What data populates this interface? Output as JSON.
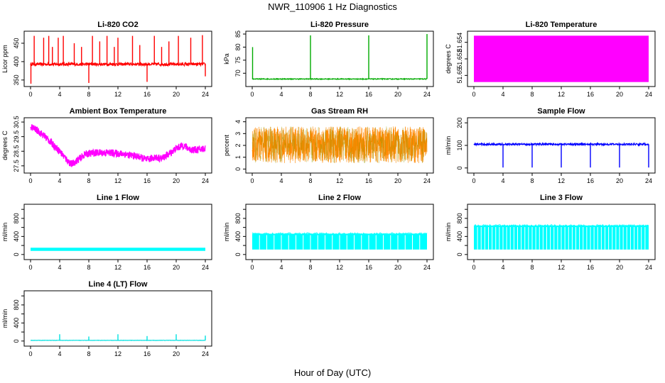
{
  "figure": {
    "title": "NWR_110906  1 Hz Diagnostics",
    "xlabel": "Hour of Day (UTC)"
  },
  "chart_data": [
    {
      "id": "co2",
      "type": "line",
      "title": "Li-820 CO2",
      "ylabel": "Licor ppm",
      "color": "#ff0000",
      "xlim": [
        0,
        24
      ],
      "ylim": [
        340,
        475
      ],
      "xticks": [
        0,
        4,
        8,
        12,
        16,
        20,
        24
      ],
      "yticks": [
        350,
        400,
        450
      ],
      "ytick_labels": [
        "350",
        "400",
        "450"
      ],
      "baseline": 393,
      "noise": 4,
      "spikes": [
        {
          "x": 0.05,
          "y": 340
        },
        {
          "x": 0.5,
          "y": 470
        },
        {
          "x": 1.8,
          "y": 465
        },
        {
          "x": 2.5,
          "y": 470
        },
        {
          "x": 3.0,
          "y": 440
        },
        {
          "x": 3.8,
          "y": 465
        },
        {
          "x": 4.5,
          "y": 470
        },
        {
          "x": 6.0,
          "y": 450
        },
        {
          "x": 7.0,
          "y": 440
        },
        {
          "x": 8.0,
          "y": 342
        },
        {
          "x": 8.5,
          "y": 470
        },
        {
          "x": 9.5,
          "y": 455
        },
        {
          "x": 10.5,
          "y": 470
        },
        {
          "x": 11.5,
          "y": 440
        },
        {
          "x": 12.0,
          "y": 465
        },
        {
          "x": 14.0,
          "y": 470
        },
        {
          "x": 15.0,
          "y": 445
        },
        {
          "x": 16.0,
          "y": 345
        },
        {
          "x": 17.0,
          "y": 470
        },
        {
          "x": 18.0,
          "y": 440
        },
        {
          "x": 19.0,
          "y": 455
        },
        {
          "x": 20.3,
          "y": 470
        },
        {
          "x": 22.0,
          "y": 465
        },
        {
          "x": 23.6,
          "y": 472
        },
        {
          "x": 24.0,
          "y": 360
        }
      ]
    },
    {
      "id": "pressure",
      "type": "line",
      "title": "Li-820 Pressure",
      "ylabel": "kPa",
      "color": "#00aa00",
      "xlim": [
        0,
        24
      ],
      "ylim": [
        66,
        85
      ],
      "xticks": [
        0,
        4,
        8,
        12,
        16,
        20,
        24
      ],
      "yticks": [
        70,
        75,
        80,
        85
      ],
      "ytick_labels": [
        "70",
        "75",
        "80",
        "85"
      ],
      "baseline": 67.8,
      "noise": 0.15,
      "spikes": [
        {
          "x": 0.05,
          "y": 80
        },
        {
          "x": 8.0,
          "y": 84.5
        },
        {
          "x": 16.0,
          "y": 84.5
        },
        {
          "x": 24.0,
          "y": 85
        }
      ]
    },
    {
      "id": "temperature",
      "type": "band",
      "title": "Li-820 Temperature",
      "ylabel": "degrees C",
      "color": "#ff00ff",
      "xlim": [
        0,
        24
      ],
      "ylim": [
        51.649,
        51.655
      ],
      "xticks": [
        0,
        4,
        8,
        12,
        16,
        20,
        24
      ],
      "yticks": [
        51.65,
        51.652,
        51.654
      ],
      "ytick_labels": [
        "51.65",
        "51.652",
        "51.654"
      ],
      "band": [
        51.6492,
        51.6548
      ]
    },
    {
      "id": "ambient",
      "type": "noisy-line",
      "title": "Ambient Box Temperature",
      "ylabel": "degrees C",
      "color": "#ff00ff",
      "xlim": [
        0,
        24
      ],
      "ylim": [
        27.2,
        30.6
      ],
      "xticks": [
        0,
        4,
        8,
        12,
        16,
        20,
        24
      ],
      "yticks": [
        27.5,
        28.5,
        29.5,
        30.5
      ],
      "ytick_labels": [
        "27.5",
        "28.5",
        "29.5",
        "30.5"
      ],
      "noise": 0.25,
      "x": [
        0,
        1,
        2,
        3,
        4,
        5,
        5.6,
        6.5,
        7.5,
        9,
        11,
        13,
        15,
        16,
        17,
        18,
        19,
        20,
        21,
        22,
        23,
        24
      ],
      "y": [
        30.2,
        29.9,
        29.5,
        29.0,
        28.5,
        27.9,
        27.6,
        27.9,
        28.3,
        28.4,
        28.4,
        28.3,
        28.1,
        27.9,
        28.1,
        28.0,
        28.3,
        28.7,
        28.9,
        28.6,
        28.6,
        28.7
      ]
    },
    {
      "id": "rh",
      "type": "scatter-band",
      "title": "Gas Stream RH",
      "ylabel": "percent",
      "color": "#ff8800",
      "color2": "#999900",
      "xlim": [
        0,
        24
      ],
      "ylim": [
        -0.1,
        4.1
      ],
      "xticks": [
        0,
        4,
        8,
        12,
        16,
        20,
        24
      ],
      "yticks": [
        0,
        1,
        2,
        3,
        4
      ],
      "ytick_labels": [
        "0",
        "1",
        "2",
        "3",
        "4"
      ],
      "band": [
        0.5,
        3.6
      ]
    },
    {
      "id": "sample",
      "type": "line",
      "title": "Sample Flow",
      "ylabel": "ml/min",
      "color": "#0000ff",
      "xlim": [
        0,
        24
      ],
      "ylim": [
        -10,
        210
      ],
      "xticks": [
        0,
        4,
        8,
        12,
        16,
        20,
        24
      ],
      "yticks": [
        0,
        100,
        200
      ],
      "ytick_labels": [
        "0",
        "100",
        "200"
      ],
      "baseline": 105,
      "noise": 4,
      "spikes": [
        {
          "x": 4.0,
          "y": 2
        },
        {
          "x": 8.0,
          "y": 2
        },
        {
          "x": 12.0,
          "y": 2
        },
        {
          "x": 16.0,
          "y": 2
        },
        {
          "x": 20.0,
          "y": 2
        },
        {
          "x": 24.0,
          "y": 2
        }
      ]
    },
    {
      "id": "line1",
      "type": "band",
      "title": "Line 1 Flow",
      "ylabel": "ml/min",
      "color": "#00ffff",
      "xlim": [
        0,
        24
      ],
      "ylim": [
        -50,
        1050
      ],
      "xticks": [
        0,
        4,
        8,
        12,
        16,
        20,
        24
      ],
      "yticks": [
        0,
        200,
        400,
        600,
        800,
        1000
      ],
      "ytick_labels": [
        "0",
        "400",
        "800"
      ],
      "ytick_label_values": [
        0,
        400,
        800
      ],
      "band": [
        80,
        150
      ]
    },
    {
      "id": "line2",
      "type": "switch-band",
      "title": "Line 2 Flow",
      "ylabel": "ml/min",
      "color": "#00ffff",
      "xlim": [
        0,
        24
      ],
      "ylim": [
        -50,
        1050
      ],
      "xticks": [
        0,
        4,
        8,
        12,
        16,
        20,
        24
      ],
      "yticks": [
        0,
        200,
        400,
        600,
        800,
        1000
      ],
      "ytick_labels": [
        "0",
        "400",
        "800"
      ],
      "ytick_label_values": [
        0,
        400,
        800
      ],
      "band": [
        110,
        460
      ],
      "gap_every": 1.0
    },
    {
      "id": "line3",
      "type": "switch-band",
      "title": "Line 3 Flow",
      "ylabel": "ml/min",
      "color": "#00ffff",
      "xlim": [
        0,
        24
      ],
      "ylim": [
        -50,
        1050
      ],
      "xticks": [
        0,
        4,
        8,
        12,
        16,
        20,
        24
      ],
      "yticks": [
        0,
        200,
        400,
        600,
        800,
        1000
      ],
      "ytick_labels": [
        "0",
        "400",
        "800"
      ],
      "ytick_label_values": [
        0,
        400,
        800
      ],
      "band": [
        110,
        640
      ],
      "gap_every": 0.5
    },
    {
      "id": "line4",
      "type": "line",
      "title": "Line 4 (LT) Flow",
      "ylabel": "ml/min",
      "color": "#00e0e0",
      "xlim": [
        0,
        24
      ],
      "ylim": [
        -50,
        1050
      ],
      "xticks": [
        0,
        4,
        8,
        12,
        16,
        20,
        24
      ],
      "yticks": [
        0,
        200,
        400,
        600,
        800,
        1000
      ],
      "ytick_labels": [
        "0",
        "400",
        "800"
      ],
      "ytick_label_values": [
        0,
        400,
        800
      ],
      "baseline": 15,
      "noise": 3,
      "spikes": [
        {
          "x": 4.0,
          "y": 150
        },
        {
          "x": 8.0,
          "y": 100
        },
        {
          "x": 12.0,
          "y": 150
        },
        {
          "x": 16.0,
          "y": 110
        },
        {
          "x": 20.0,
          "y": 150
        },
        {
          "x": 24.0,
          "y": 120
        }
      ]
    }
  ]
}
